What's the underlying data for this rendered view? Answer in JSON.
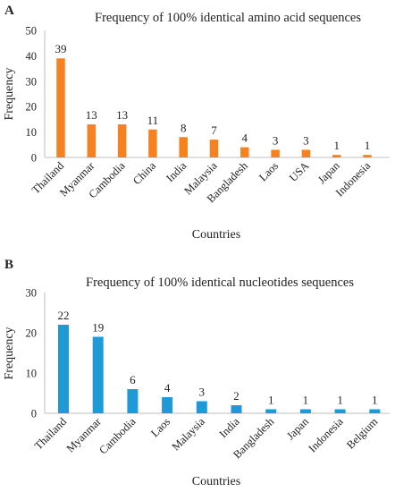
{
  "charts": [
    {
      "panel_label": "A",
      "color": "#f5821f",
      "chart_data": {
        "type": "bar",
        "title": "Frequency  of 100% identical amino acid sequences",
        "xlabel": "Countries",
        "ylabel": "Frequency",
        "ylim": [
          0,
          50
        ],
        "yticks": [
          0,
          10,
          20,
          30,
          40,
          50
        ],
        "grid": false,
        "categories": [
          "Thailand",
          "Myanmar",
          "Cambodia",
          "China",
          "India",
          "Malaysia",
          "Bangladesh",
          "Laos",
          "USA",
          "Japan",
          "Indonesia"
        ],
        "values": [
          39,
          13,
          13,
          11,
          8,
          7,
          4,
          3,
          3,
          1,
          1
        ]
      }
    },
    {
      "panel_label": "B",
      "color": "#1f9ad6",
      "chart_data": {
        "type": "bar",
        "title": "Frequency of 100% identical nucleotides sequences",
        "xlabel": "Countries",
        "ylabel": "Frequency",
        "ylim": [
          0,
          30
        ],
        "yticks": [
          0,
          10,
          20,
          30
        ],
        "grid": false,
        "categories": [
          "Thailand",
          "Myanmar",
          "Cambodia",
          "Laos",
          "Malaysia",
          "India",
          "Bangladesh",
          "Japan",
          "Indonesia",
          "Belgium"
        ],
        "values": [
          22,
          19,
          6,
          4,
          3,
          2,
          1,
          1,
          1,
          1
        ]
      }
    }
  ]
}
